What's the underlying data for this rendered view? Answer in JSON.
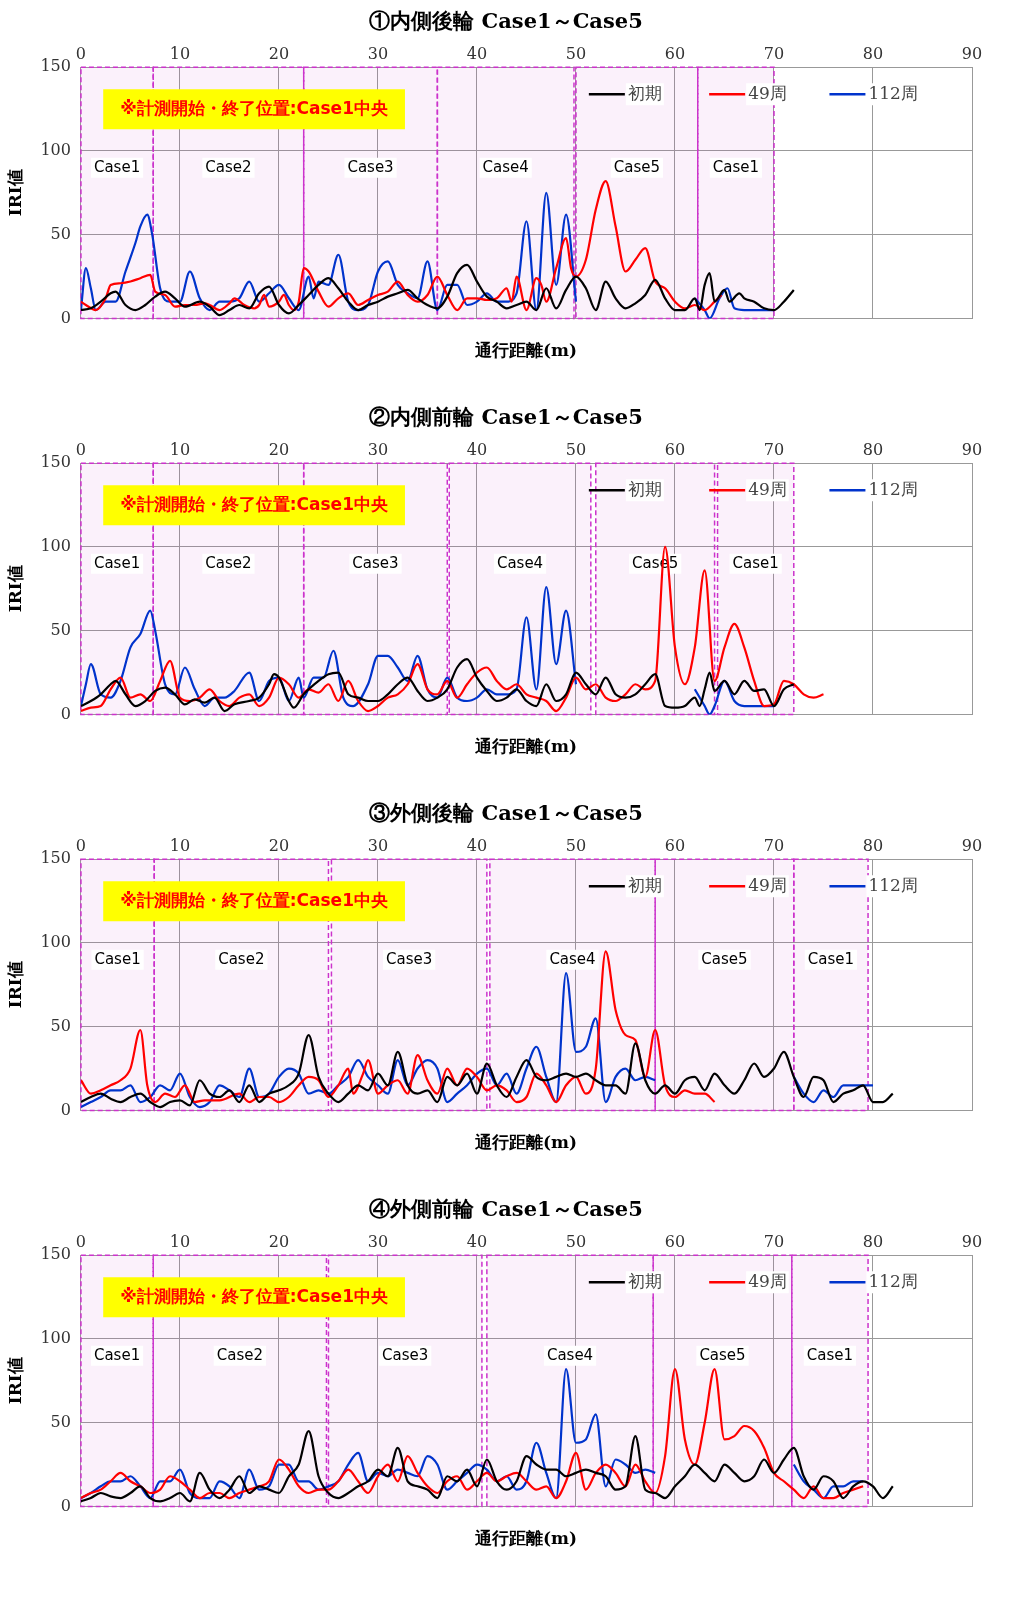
{
  "chart_data": [
    {
      "type": "line",
      "title": "①内側後輪 Case1～Case5",
      "xlabel": "通行距離(m)",
      "ylabel": "IRI値",
      "xlim": [
        0,
        90
      ],
      "xticks": [
        0,
        10,
        20,
        30,
        40,
        50,
        60,
        70,
        80,
        90
      ],
      "ylim": [
        0,
        150
      ],
      "yticks": [
        0,
        50,
        100,
        150
      ],
      "grid": true,
      "legend": "top right",
      "marker": "none",
      "annotations": [
        "※計測開始・終了位置:Case1中央"
      ],
      "bands": [
        {
          "axis": "x",
          "from": 0,
          "to": 7.3,
          "label": "Case1",
          "color": "#cc33cc"
        },
        {
          "axis": "x",
          "from": 7.3,
          "to": 22.5,
          "label": "Case2",
          "color": "#cc33cc"
        },
        {
          "axis": "x",
          "from": 22.5,
          "to": 36,
          "label": "Case3",
          "color": "#cc33cc"
        },
        {
          "axis": "x",
          "from": 36,
          "to": 49.8,
          "label": "Case4",
          "color": "#cc33cc"
        },
        {
          "axis": "x",
          "from": 50,
          "to": 62.3,
          "label": "Case5",
          "color": "#cc33cc"
        },
        {
          "axis": "x",
          "from": 62.3,
          "to": 70,
          "label": "Case1",
          "color": "#cc33cc"
        }
      ],
      "series": [
        {
          "name": "初期",
          "color": "#000000",
          "x": [
            0,
            1,
            2,
            3,
            3.5,
            4.5,
            5.5,
            6.5,
            7.5,
            8.5,
            9.5,
            10.5,
            12,
            13,
            14,
            15,
            16,
            17,
            18,
            19,
            20,
            21,
            22,
            23,
            24,
            25,
            26,
            27,
            28,
            29,
            30,
            31,
            32,
            33,
            34,
            35,
            36,
            37,
            38,
            39,
            40,
            41,
            42,
            43,
            44,
            45,
            46,
            47,
            48,
            49,
            50,
            51,
            52,
            53,
            54,
            55,
            56,
            57,
            58,
            59,
            60,
            61,
            62,
            62.5,
            63,
            63.5,
            64,
            65,
            65.5,
            66.5,
            67,
            68,
            69,
            70,
            71,
            72
          ],
          "values": [
            5,
            6,
            10,
            15,
            16,
            8,
            5,
            8,
            13,
            16,
            12,
            7,
            10,
            7,
            2,
            5,
            8,
            6,
            15,
            19,
            8,
            3,
            8,
            14,
            20,
            24,
            18,
            10,
            5,
            8,
            10,
            13,
            15,
            17,
            12,
            8,
            6,
            13,
            27,
            32,
            22,
            13,
            10,
            6,
            8,
            10,
            5,
            18,
            6,
            17,
            25,
            18,
            5,
            22,
            12,
            6,
            9,
            14,
            23,
            12,
            5,
            5,
            12,
            5,
            20,
            27,
            10,
            17,
            10,
            15,
            12,
            10,
            6,
            5,
            10,
            17
          ]
        },
        {
          "name": "49周",
          "color": "#ff0000",
          "x": [
            0,
            0.5,
            1.5,
            2.5,
            3,
            4,
            5,
            6,
            7,
            7.5,
            8.5,
            9.5,
            10.5,
            11.5,
            12.5,
            13,
            14,
            15,
            15.5,
            16.5,
            17.5,
            18,
            18.5,
            19,
            20,
            20.5,
            21,
            21.5,
            22,
            22.5,
            23,
            24,
            25,
            26,
            27,
            28,
            29,
            30,
            31,
            32,
            33,
            34,
            35,
            36,
            37,
            38,
            39,
            40,
            41,
            42,
            43,
            43.5,
            44,
            45,
            46,
            46.5,
            47,
            48,
            49,
            49.5,
            50,
            51,
            52,
            53,
            54,
            55,
            56,
            57,
            58,
            59,
            60,
            61,
            62,
            63,
            64,
            64.7
          ],
          "values": [
            10,
            8,
            5,
            12,
            20,
            21,
            22,
            24,
            26,
            16,
            14,
            7,
            8,
            8,
            9,
            8,
            5,
            9,
            12,
            8,
            6,
            8,
            14,
            7,
            10,
            14,
            8,
            5,
            10,
            30,
            28,
            16,
            7,
            12,
            15,
            8,
            11,
            14,
            16,
            22,
            14,
            10,
            14,
            25,
            14,
            5,
            12,
            12,
            11,
            12,
            18,
            10,
            25,
            5,
            24,
            20,
            10,
            30,
            48,
            30,
            25,
            35,
            65,
            82,
            55,
            28,
            35,
            42,
            22,
            18,
            10,
            6,
            8,
            5,
            10,
            14
          ]
        },
        {
          "name": "112周",
          "color": "#0033cc",
          "x": [
            0,
            0.5,
            1,
            1.5,
            2.5,
            3.5,
            4.5,
            5.5,
            6,
            6.7,
            7.2,
            8,
            9,
            10,
            11,
            12,
            13,
            14,
            15,
            16,
            17,
            18,
            19,
            20,
            21,
            22,
            23,
            23.5,
            24,
            25,
            26,
            27,
            28,
            29,
            30,
            31,
            32,
            33,
            34,
            35,
            36,
            37,
            38,
            39,
            40,
            41,
            42,
            43,
            44,
            45,
            46,
            47,
            48,
            49,
            50,
            56,
            62,
            63,
            63.5,
            64.5,
            65.3,
            66,
            67,
            70
          ],
          "values": [
            5,
            30,
            18,
            5,
            10,
            10,
            28,
            45,
            55,
            62,
            50,
            18,
            10,
            10,
            28,
            12,
            5,
            10,
            10,
            12,
            22,
            10,
            15,
            20,
            12,
            5,
            25,
            12,
            22,
            20,
            38,
            10,
            5,
            8,
            28,
            34,
            20,
            15,
            12,
            34,
            5,
            20,
            20,
            8,
            10,
            15,
            10,
            10,
            15,
            58,
            5,
            75,
            20,
            62,
            10,
            null,
            12,
            5,
            0,
            12,
            18,
            6,
            5,
            5
          ]
        }
      ]
    },
    {
      "type": "line",
      "title": "②内側前輪 Case1～Case5",
      "xlabel": "通行距離(m)",
      "ylabel": "IRI値",
      "xlim": [
        0,
        90
      ],
      "xticks": [
        0,
        10,
        20,
        30,
        40,
        50,
        60,
        70,
        80,
        90
      ],
      "ylim": [
        0,
        150
      ],
      "yticks": [
        0,
        50,
        100,
        150
      ],
      "grid": true,
      "legend": "top right",
      "marker": "none",
      "annotations": [
        "※計測開始・終了位置:Case1中央"
      ],
      "bands": [
        {
          "axis": "x",
          "from": 0,
          "to": 7.3,
          "label": "Case1",
          "color": "#cc33cc"
        },
        {
          "axis": "x",
          "from": 7.3,
          "to": 22.5,
          "label": "Case2",
          "color": "#cc33cc"
        },
        {
          "axis": "x",
          "from": 22.5,
          "to": 37,
          "label": "Case3",
          "color": "#cc33cc"
        },
        {
          "axis": "x",
          "from": 37.2,
          "to": 51.5,
          "label": "Case4",
          "color": "#cc33cc"
        },
        {
          "axis": "x",
          "from": 52,
          "to": 64,
          "label": "Case5",
          "color": "#cc33cc"
        },
        {
          "axis": "x",
          "from": 64.3,
          "to": 72,
          "label": "Case1",
          "color": "#cc33cc"
        }
      ],
      "series": [
        {
          "name": "初期",
          "color": "#000000",
          "x": [
            0,
            1,
            2,
            3,
            3.5,
            4.5,
            5.5,
            6.5,
            7.5,
            8.5,
            9.5,
            10.5,
            11.5,
            12.5,
            13.5,
            14.5,
            15.5,
            17,
            18,
            19,
            19.5,
            20,
            21,
            21.5,
            22.5,
            24,
            25,
            26,
            27,
            28,
            29,
            30,
            31,
            32,
            33,
            34,
            35,
            36,
            37,
            38,
            39,
            40,
            41,
            42,
            43,
            44,
            45,
            46,
            47,
            48,
            49,
            50,
            51,
            52,
            53,
            54,
            55,
            56,
            57,
            58,
            59,
            60,
            61,
            62,
            62.5,
            63,
            63.5,
            64,
            65,
            66,
            67,
            68,
            69,
            70,
            71,
            72
          ],
          "values": [
            5,
            8,
            12,
            18,
            20,
            12,
            5,
            8,
            14,
            16,
            12,
            6,
            9,
            7,
            10,
            2,
            6,
            8,
            10,
            18,
            24,
            22,
            8,
            4,
            12,
            20,
            24,
            25,
            12,
            10,
            8,
            8,
            12,
            18,
            22,
            14,
            8,
            10,
            15,
            28,
            33,
            22,
            14,
            8,
            10,
            15,
            8,
            5,
            18,
            8,
            12,
            25,
            18,
            12,
            22,
            12,
            10,
            12,
            18,
            24,
            5,
            4,
            5,
            10,
            5,
            15,
            25,
            14,
            20,
            12,
            20,
            14,
            15,
            5,
            15,
            18
          ]
        },
        {
          "name": "49周",
          "color": "#ff0000",
          "x": [
            0,
            1,
            2,
            3,
            4,
            5,
            6,
            7,
            8,
            9,
            10,
            11,
            12,
            13,
            14,
            15,
            16,
            17,
            18,
            19,
            20,
            21,
            22,
            23,
            24,
            25,
            26,
            27,
            28,
            29,
            30,
            31,
            32,
            33,
            34,
            35,
            36,
            37,
            38,
            39,
            40,
            41,
            42,
            43,
            44,
            45,
            46,
            47,
            48,
            49,
            50,
            51,
            52,
            53,
            54,
            55,
            56,
            57,
            58,
            59,
            60,
            61,
            62,
            63,
            64,
            65,
            66,
            67,
            68,
            69,
            70,
            71,
            72,
            73,
            74,
            75
          ],
          "values": [
            2,
            4,
            5,
            15,
            22,
            10,
            12,
            8,
            20,
            32,
            10,
            8,
            10,
            15,
            8,
            5,
            10,
            12,
            5,
            10,
            22,
            18,
            10,
            15,
            13,
            18,
            8,
            20,
            8,
            2,
            5,
            10,
            12,
            18,
            30,
            15,
            12,
            20,
            10,
            18,
            25,
            28,
            20,
            15,
            18,
            12,
            10,
            8,
            2,
            10,
            22,
            15,
            18,
            10,
            8,
            12,
            18,
            15,
            20,
            100,
            40,
            18,
            40,
            86,
            20,
            40,
            54,
            40,
            20,
            5,
            6,
            20,
            18,
            12,
            10,
            12
          ]
        },
        {
          "name": "112周",
          "color": "#0033cc",
          "x": [
            0,
            0.5,
            1,
            2,
            3,
            4,
            5,
            6,
            7,
            7.5,
            8.5,
            9.5,
            10.5,
            11.5,
            12.5,
            13.5,
            14.5,
            15.5,
            17,
            18,
            19,
            20,
            21,
            22,
            22.5,
            23.5,
            24.5,
            25.5,
            26.5,
            27.5,
            29,
            30,
            31,
            32,
            33,
            34,
            35,
            36,
            37,
            38,
            39,
            40,
            41,
            42,
            43,
            44,
            45,
            46,
            47,
            48,
            49,
            50,
            56,
            62,
            63,
            63.5,
            64,
            65,
            66,
            67,
            70
          ],
          "values": [
            5,
            18,
            30,
            12,
            10,
            20,
            40,
            48,
            62,
            50,
            18,
            12,
            28,
            15,
            5,
            10,
            10,
            14,
            25,
            8,
            20,
            22,
            8,
            22,
            10,
            22,
            22,
            38,
            10,
            5,
            18,
            35,
            35,
            28,
            20,
            35,
            15,
            10,
            22,
            10,
            8,
            10,
            15,
            12,
            12,
            15,
            58,
            15,
            76,
            30,
            62,
            18,
            null,
            15,
            5,
            0,
            5,
            20,
            8,
            5,
            5
          ]
        }
      ]
    },
    {
      "type": "line",
      "title": "③外側後輪 Case1～Case5",
      "xlabel": "通行距離(m)",
      "ylabel": "IRI値",
      "xlim": [
        0,
        90
      ],
      "xticks": [
        0,
        10,
        20,
        30,
        40,
        50,
        60,
        70,
        80,
        90
      ],
      "ylim": [
        0,
        150
      ],
      "yticks": [
        0,
        50,
        100,
        150
      ],
      "grid": true,
      "legend": "top right",
      "marker": "none",
      "annotations": [
        "※計測開始・終了位置:Case1中央"
      ],
      "bands": [
        {
          "axis": "x",
          "from": 0,
          "to": 7.4,
          "label": "Case1",
          "color": "#cc33cc"
        },
        {
          "axis": "x",
          "from": 7.4,
          "to": 25,
          "label": "Case2",
          "color": "#cc33cc"
        },
        {
          "axis": "x",
          "from": 25.3,
          "to": 41,
          "label": "Case3",
          "color": "#cc33cc"
        },
        {
          "axis": "x",
          "from": 41.3,
          "to": 58,
          "label": "Case4",
          "color": "#cc33cc"
        },
        {
          "axis": "x",
          "from": 58,
          "to": 72,
          "label": "Case5",
          "color": "#cc33cc"
        },
        {
          "axis": "x",
          "from": 72,
          "to": 79.5,
          "label": "Case1",
          "color": "#cc33cc"
        }
      ],
      "series": [
        {
          "name": "初期",
          "color": "#000000",
          "x": [
            0,
            1,
            2,
            3,
            4,
            5,
            6,
            7,
            8,
            9,
            10,
            11,
            12,
            13,
            14,
            15,
            16,
            17,
            18,
            19,
            20,
            21,
            22,
            23,
            24,
            25,
            26,
            27,
            28,
            29,
            30,
            31,
            32,
            33,
            34,
            35,
            36,
            37,
            38,
            39,
            40,
            41,
            42,
            43,
            44,
            45,
            46,
            47,
            48,
            49,
            50,
            51,
            52,
            53,
            54,
            55,
            56,
            57,
            58,
            59,
            60,
            61,
            62,
            63,
            64,
            65,
            66,
            67,
            68,
            69,
            70,
            71,
            72,
            73,
            74,
            75,
            76,
            77,
            78,
            79,
            80,
            81,
            82
          ],
          "values": [
            5,
            8,
            10,
            7,
            5,
            8,
            10,
            5,
            2,
            5,
            6,
            3,
            18,
            10,
            8,
            12,
            5,
            15,
            5,
            10,
            12,
            15,
            22,
            45,
            20,
            10,
            5,
            10,
            15,
            12,
            22,
            15,
            35,
            15,
            10,
            12,
            5,
            20,
            15,
            22,
            10,
            28,
            15,
            8,
            20,
            30,
            20,
            18,
            20,
            22,
            20,
            22,
            18,
            15,
            15,
            10,
            40,
            18,
            10,
            15,
            10,
            18,
            20,
            12,
            22,
            15,
            10,
            18,
            28,
            20,
            25,
            35,
            20,
            8,
            20,
            18,
            5,
            10,
            12,
            15,
            5,
            5,
            10
          ]
        },
        {
          "name": "49周",
          "color": "#ff0000",
          "x": [
            0,
            1,
            2,
            3,
            4,
            5,
            6,
            6.7,
            7.5,
            8.5,
            9.5,
            10.5,
            11.5,
            12.5,
            14,
            16,
            17,
            18,
            19,
            20,
            21,
            22,
            23,
            24,
            25,
            26,
            27,
            27.5,
            28.5,
            29,
            30,
            31,
            32,
            33,
            34,
            35,
            36,
            37,
            38,
            39,
            40,
            41,
            42,
            43,
            44,
            45,
            46,
            47,
            48,
            49,
            50,
            51,
            52,
            53,
            54,
            55,
            56,
            57,
            58,
            59,
            60,
            61,
            62,
            63,
            64
          ],
          "values": [
            18,
            10,
            12,
            15,
            18,
            25,
            48,
            15,
            5,
            10,
            8,
            15,
            5,
            6,
            6,
            10,
            5,
            8,
            8,
            5,
            8,
            15,
            20,
            18,
            8,
            15,
            25,
            10,
            22,
            30,
            10,
            15,
            18,
            10,
            33,
            18,
            10,
            25,
            15,
            25,
            20,
            12,
            15,
            12,
            5,
            8,
            22,
            15,
            5,
            15,
            20,
            10,
            25,
            95,
            60,
            45,
            42,
            20,
            48,
            15,
            8,
            12,
            10,
            10,
            5
          ]
        },
        {
          "name": "112周",
          "color": "#0033cc",
          "x": [
            0,
            1,
            2,
            3,
            4,
            5,
            6,
            7,
            8,
            9,
            10,
            11,
            12,
            13,
            14,
            15,
            16,
            17,
            18,
            19,
            20,
            21,
            22,
            23,
            24,
            25,
            26,
            27,
            28,
            29,
            30,
            31,
            32,
            33,
            34,
            35,
            36,
            37,
            38,
            39,
            40,
            41,
            42,
            43,
            44,
            45,
            46,
            47,
            48,
            49,
            50,
            51,
            52,
            53,
            54,
            55,
            56,
            57,
            58,
            65,
            72,
            73,
            74,
            75,
            76,
            77,
            78,
            79,
            80
          ],
          "values": [
            2,
            5,
            8,
            12,
            12,
            15,
            5,
            8,
            15,
            12,
            22,
            8,
            2,
            5,
            15,
            12,
            8,
            25,
            8,
            10,
            20,
            25,
            22,
            10,
            12,
            10,
            15,
            20,
            30,
            20,
            15,
            10,
            30,
            15,
            25,
            30,
            25,
            5,
            10,
            15,
            22,
            25,
            15,
            22,
            10,
            25,
            38,
            20,
            5,
            82,
            35,
            38,
            55,
            5,
            20,
            25,
            18,
            20,
            18,
            null,
            20,
            10,
            5,
            12,
            8,
            15,
            15,
            15,
            15
          ]
        }
      ]
    },
    {
      "type": "line",
      "title": "④外側前輪 Case1～Case5",
      "xlabel": "通行距離(m)",
      "ylabel": "IRI値",
      "xlim": [
        0,
        90
      ],
      "xticks": [
        0,
        10,
        20,
        30,
        40,
        50,
        60,
        70,
        80,
        90
      ],
      "ylim": [
        0,
        150
      ],
      "yticks": [
        0,
        50,
        100,
        150
      ],
      "grid": true,
      "legend": "top right",
      "marker": "none",
      "annotations": [
        "※計測開始・終了位置:Case1中央"
      ],
      "bands": [
        {
          "axis": "x",
          "from": 0,
          "to": 7.3,
          "label": "Case1",
          "color": "#cc33cc"
        },
        {
          "axis": "x",
          "from": 7.3,
          "to": 24.8,
          "label": "Case2",
          "color": "#cc33cc"
        },
        {
          "axis": "x",
          "from": 25,
          "to": 40.5,
          "label": "Case3",
          "color": "#cc33cc"
        },
        {
          "axis": "x",
          "from": 41,
          "to": 57.8,
          "label": "Case4",
          "color": "#cc33cc"
        },
        {
          "axis": "x",
          "from": 57.8,
          "to": 71.8,
          "label": "Case5",
          "color": "#cc33cc"
        },
        {
          "axis": "x",
          "from": 71.8,
          "to": 79.5,
          "label": "Case1",
          "color": "#cc33cc"
        }
      ],
      "series": [
        {
          "name": "初期",
          "color": "#000000",
          "x": [
            0,
            1,
            2,
            3,
            4,
            5,
            6,
            7,
            8,
            9,
            10,
            11,
            12,
            13,
            14,
            15,
            16,
            17,
            18,
            19,
            20,
            21,
            22,
            23,
            24,
            25,
            26,
            27,
            28,
            29,
            30,
            31,
            32,
            33,
            34,
            35,
            36,
            37,
            38,
            39,
            40,
            41,
            42,
            43,
            44,
            45,
            46,
            47,
            48,
            49,
            50,
            51,
            52,
            53,
            54,
            55,
            56,
            57,
            58,
            59,
            60,
            61,
            62,
            63,
            64,
            65,
            66,
            67,
            68,
            69,
            70,
            71,
            72,
            73,
            74,
            75,
            76,
            77,
            78,
            79,
            80,
            81,
            82
          ],
          "values": [
            3,
            5,
            8,
            6,
            5,
            8,
            12,
            5,
            3,
            5,
            8,
            3,
            20,
            10,
            5,
            10,
            18,
            8,
            12,
            10,
            8,
            18,
            25,
            45,
            18,
            8,
            5,
            8,
            12,
            15,
            22,
            18,
            35,
            15,
            12,
            10,
            5,
            18,
            15,
            22,
            12,
            28,
            15,
            10,
            15,
            30,
            25,
            22,
            22,
            18,
            20,
            22,
            20,
            18,
            10,
            12,
            42,
            10,
            8,
            5,
            12,
            18,
            25,
            20,
            15,
            25,
            20,
            15,
            18,
            28,
            20,
            28,
            35,
            18,
            10,
            18,
            15,
            5,
            12,
            15,
            12,
            5,
            12
          ]
        },
        {
          "name": "49周",
          "color": "#ff0000",
          "x": [
            0,
            1,
            2,
            3,
            4,
            5,
            6,
            7,
            8,
            9,
            10,
            11,
            12,
            13,
            14,
            15,
            16,
            17,
            18,
            19,
            20,
            21,
            22,
            23,
            24,
            25,
            26,
            27,
            28,
            29,
            30,
            31,
            32,
            33,
            34,
            35,
            36,
            37,
            38,
            39,
            40,
            41,
            42,
            43,
            44,
            45,
            46,
            47,
            48,
            49,
            50,
            51,
            52,
            53,
            54,
            55,
            56,
            57,
            58,
            59,
            60,
            61,
            62,
            63,
            64,
            65,
            66,
            67,
            68,
            69,
            70,
            71,
            72,
            73,
            74,
            75,
            76,
            77,
            78,
            79
          ],
          "values": [
            5,
            8,
            10,
            15,
            20,
            15,
            12,
            8,
            10,
            18,
            15,
            10,
            5,
            8,
            8,
            5,
            8,
            10,
            12,
            15,
            28,
            22,
            12,
            8,
            10,
            10,
            15,
            22,
            15,
            8,
            18,
            25,
            15,
            30,
            20,
            12,
            8,
            15,
            18,
            10,
            15,
            20,
            15,
            18,
            20,
            15,
            10,
            12,
            5,
            15,
            32,
            10,
            20,
            25,
            20,
            12,
            25,
            15,
            8,
            30,
            82,
            40,
            25,
            50,
            82,
            40,
            42,
            48,
            45,
            35,
            20,
            15,
            10,
            5,
            12,
            5,
            5,
            8,
            10,
            12
          ]
        },
        {
          "name": "112周",
          "color": "#0033cc",
          "x": [
            0,
            1,
            2,
            3,
            4,
            5,
            6,
            7,
            8,
            9,
            10,
            11,
            12,
            13,
            14,
            15,
            16,
            17,
            18,
            19,
            20,
            21,
            22,
            23,
            24,
            25,
            26,
            27,
            28,
            29,
            30,
            31,
            32,
            33,
            34,
            35,
            36,
            37,
            38,
            39,
            40,
            41,
            42,
            43,
            44,
            45,
            46,
            47,
            48,
            49,
            50,
            51,
            52,
            53,
            54,
            55,
            56,
            57,
            58,
            65,
            72,
            73,
            74,
            75,
            76,
            77,
            78,
            79
          ],
          "values": [
            5,
            8,
            12,
            15,
            15,
            18,
            12,
            5,
            15,
            15,
            22,
            8,
            5,
            5,
            15,
            12,
            5,
            22,
            10,
            12,
            25,
            25,
            15,
            15,
            10,
            12,
            15,
            25,
            32,
            15,
            20,
            18,
            22,
            20,
            18,
            30,
            25,
            10,
            15,
            20,
            25,
            22,
            15,
            18,
            10,
            15,
            38,
            20,
            5,
            82,
            38,
            40,
            55,
            12,
            28,
            25,
            20,
            22,
            20,
            null,
            25,
            15,
            10,
            5,
            12,
            12,
            15,
            15
          ]
        }
      ]
    }
  ]
}
